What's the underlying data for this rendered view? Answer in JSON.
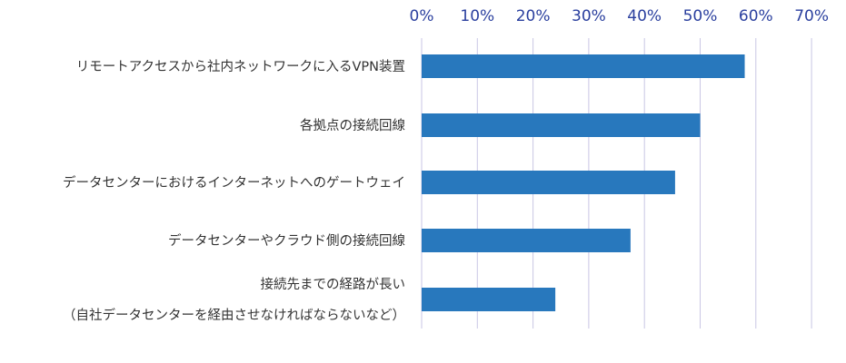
{
  "chart_data": {
    "type": "bar",
    "orientation": "horizontal",
    "categories": [
      [
        "リモートアクセスから社内ネットワークに入るVPN装置"
      ],
      [
        "各拠点の接続回線"
      ],
      [
        "データセンターにおけるインターネットへのゲートウェイ"
      ],
      [
        "データセンターやクラウド側の接続回線"
      ],
      [
        "接続先までの経路が長い",
        "（自社データセンターを経由させなければならないなど）"
      ]
    ],
    "values": [
      58,
      50,
      45.5,
      37.5,
      24
    ],
    "ticks": [
      "0%",
      "10%",
      "20%",
      "30%",
      "40%",
      "50%",
      "60%",
      "70%"
    ],
    "xlim": [
      0,
      70
    ],
    "x_axis_position": "top",
    "grid": true,
    "bar_color": "#2878bd",
    "title": "",
    "xlabel": "",
    "ylabel": ""
  }
}
